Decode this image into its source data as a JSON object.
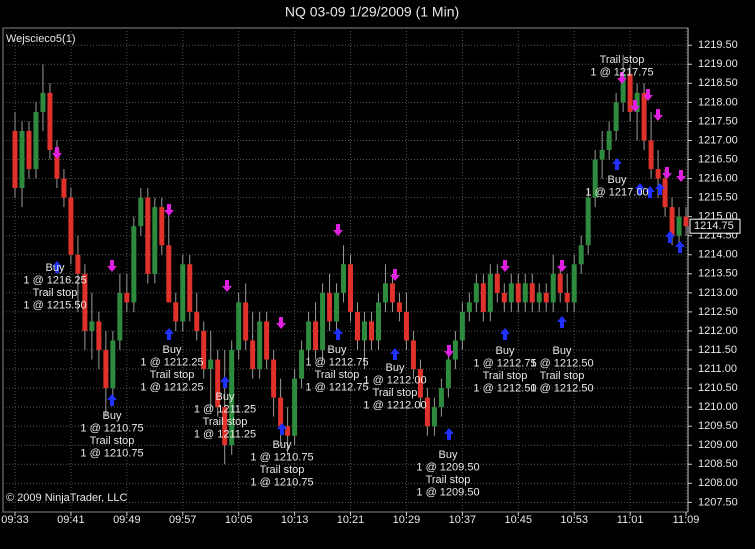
{
  "chart_data": {
    "type": "candlestick",
    "title": "NQ 03-09  1/29/2009 (1 Min)",
    "series_label": "Wejscieco5(1)",
    "copyright": "© 2009 NinjaTrader, LLC",
    "up_color": "#2e8b3e",
    "down_color": "#e0322a",
    "grid": true,
    "categories": [
      "09:33",
      null,
      null,
      null,
      null,
      null,
      null,
      null,
      "09:41",
      null,
      null,
      null,
      null,
      null,
      null,
      null,
      "09:49",
      null,
      null,
      null,
      null,
      null,
      null,
      null,
      "09:57",
      null,
      null,
      null,
      null,
      null,
      null,
      null,
      "10:05",
      null,
      null,
      null,
      null,
      null,
      null,
      null,
      "10:13",
      null,
      null,
      null,
      null,
      null,
      null,
      null,
      "10:21",
      null,
      null,
      null,
      null,
      null,
      null,
      null,
      "10:29",
      null,
      null,
      null,
      null,
      null,
      null,
      null,
      "10:37",
      null,
      null,
      null,
      null,
      null,
      null,
      null,
      "10:45",
      null,
      null,
      null,
      null,
      null,
      null,
      null,
      "10:53",
      null,
      null,
      null,
      null,
      null,
      null,
      null,
      "11:01",
      null,
      null,
      null,
      null,
      null,
      null,
      null,
      "11:09"
    ],
    "open": [
      1217.25,
      1215.75,
      1217.25,
      1216.25,
      1217.75,
      1218.25,
      1216.75,
      1216,
      1215.5,
      1214,
      1213.5,
      1212,
      1212.25,
      1211.5,
      1210.5,
      1211.75,
      1213,
      1212.75,
      1214.75,
      1215.5,
      1213.5,
      1215.25,
      1214.25,
      1212.75,
      1212.25,
      1213.75,
      1212.5,
      1212,
      1211,
      1211.25,
      1210,
      1209,
      1211.5,
      1212.75,
      1211.75,
      1211,
      1212.25,
      1211.25,
      1210.25,
      1209.5,
      1209.25,
      1210.75,
      1211.5,
      1212.25,
      1211.5,
      1213,
      1212.25,
      1213,
      1213.75,
      1212.5,
      1211.75,
      1212.25,
      1211.75,
      1212.75,
      1213.25,
      1212.75,
      1212.5,
      1211.75,
      1211,
      1210.25,
      1209.5,
      1210,
      1210.5,
      1211.25,
      1211.75,
      1212.5,
      1212.75,
      1213.25,
      1212.5,
      1213.5,
      1213,
      1212.75,
      1213.25,
      1212.75,
      1213.25,
      1212.75,
      1213,
      1212.75,
      1213.5,
      1213,
      1212.75,
      1213.75,
      1214.25,
      1215.5,
      1216.5,
      1216.75,
      1217.25,
      1218,
      1218.75,
      1217.75,
      1218.25,
      1217,
      1216.25,
      1216,
      1215.25,
      1214.5,
      1215
    ],
    "high": [
      1217.75,
      1217.5,
      1217.5,
      1218,
      1219,
      1218.5,
      1217,
      1216.25,
      1215.75,
      1214.5,
      1213.75,
      1213,
      1212.5,
      1212,
      1212,
      1213.5,
      1213.5,
      1215,
      1215.75,
      1215.75,
      1215.5,
      1215.5,
      1215.25,
      1213,
      1214,
      1214,
      1213,
      1212.25,
      1212,
      1211.5,
      1211.5,
      1211.75,
      1213,
      1213.25,
      1212.5,
      1212.5,
      1212.5,
      1211.5,
      1210.75,
      1210,
      1211,
      1211.75,
      1212.5,
      1212.75,
      1213.25,
      1213.5,
      1213.25,
      1214.25,
      1214,
      1212.75,
      1212.5,
      1212.5,
      1213,
      1213.75,
      1213.5,
      1213,
      1213,
      1212,
      1211.25,
      1210.5,
      1210.25,
      1210.75,
      1211.5,
      1212,
      1212.75,
      1213,
      1213.5,
      1213.5,
      1213.75,
      1213.75,
      1213.25,
      1213.5,
      1213.5,
      1213.5,
      1213.5,
      1213.25,
      1213.25,
      1214,
      1213.75,
      1213.5,
      1214,
      1214.5,
      1215.75,
      1216.75,
      1217.25,
      1217.5,
      1218.25,
      1219.25,
      1219,
      1218.5,
      1218.5,
      1217.75,
      1216.75,
      1216.25,
      1215.5,
      1215.25,
      1215.25
    ],
    "low": [
      1215.5,
      1215.25,
      1216,
      1216,
      1217.25,
      1216.5,
      1215.75,
      1215.25,
      1213.75,
      1212.5,
      1211.5,
      1211.25,
      1211,
      1209.75,
      1210.25,
      1211.5,
      1212.5,
      1212.5,
      1214.5,
      1213.25,
      1213.25,
      1214,
      1212.75,
      1212,
      1212,
      1212.25,
      1211.75,
      1210.75,
      1210,
      1209.75,
      1208.5,
      1208.75,
      1211.25,
      1211.5,
      1210.75,
      1210.75,
      1211,
      1209.75,
      1209,
      1208.75,
      1209,
      1210.5,
      1211.25,
      1211.25,
      1211.25,
      1212,
      1212,
      1212.75,
      1212.25,
      1211.5,
      1211,
      1211.5,
      1211.5,
      1212.5,
      1212.5,
      1212.25,
      1211.5,
      1210.75,
      1210,
      1209.25,
      1209.25,
      1209.75,
      1210.25,
      1211,
      1211.5,
      1212.25,
      1212.5,
      1212.25,
      1212.25,
      1212.75,
      1212.5,
      1212.5,
      1212.5,
      1212.5,
      1212.5,
      1212.5,
      1212.5,
      1212.5,
      1212.75,
      1212.5,
      1212.5,
      1213.5,
      1214,
      1215.25,
      1216,
      1216.5,
      1217,
      1217.75,
      1217.5,
      1217,
      1216.75,
      1216,
      1215.5,
      1215,
      1214.25,
      1214.25,
      1214.5
    ],
    "close": [
      1215.75,
      1217.25,
      1216.25,
      1217.75,
      1218.25,
      1216.75,
      1216,
      1215.5,
      1214,
      1213.5,
      1212,
      1212.25,
      1211.5,
      1210.5,
      1211.75,
      1213,
      1212.75,
      1214.75,
      1215.5,
      1213.5,
      1215.25,
      1214.25,
      1212.75,
      1212.25,
      1213.75,
      1212.5,
      1212,
      1211,
      1211.25,
      1210,
      1209,
      1211.5,
      1212.75,
      1211.75,
      1211,
      1212.25,
      1211.25,
      1210.25,
      1209.5,
      1209.25,
      1210.75,
      1211.5,
      1212.25,
      1211.5,
      1213,
      1212.25,
      1213,
      1213.75,
      1212.5,
      1211.75,
      1212.25,
      1211.75,
      1212.75,
      1213.25,
      1212.75,
      1212.5,
      1211.75,
      1211,
      1210.25,
      1209.5,
      1210,
      1210.5,
      1211.25,
      1211.75,
      1212.5,
      1212.75,
      1213.25,
      1212.5,
      1213.5,
      1213,
      1212.75,
      1213.25,
      1212.75,
      1213.25,
      1212.75,
      1213,
      1212.75,
      1213.5,
      1213,
      1212.75,
      1213.75,
      1214.25,
      1215.5,
      1216.5,
      1216.75,
      1217.25,
      1218,
      1218.75,
      1217.75,
      1218.25,
      1217,
      1216.25,
      1216,
      1215.25,
      1214.5,
      1215,
      1214.75
    ],
    "ylim": [
      1207.3,
      1219.9
    ],
    "yticks": [
      {
        "value": 1207.5,
        "label": "1207.50"
      },
      {
        "value": 1208,
        "label": "1208.00"
      },
      {
        "value": 1208.5,
        "label": "1208.50"
      },
      {
        "value": 1209,
        "label": "1209.00"
      },
      {
        "value": 1209.5,
        "label": "1209.50"
      },
      {
        "value": 1210,
        "label": "1210.00"
      },
      {
        "value": 1210.5,
        "label": "1210.50"
      },
      {
        "value": 1211,
        "label": "1211.00"
      },
      {
        "value": 1211.5,
        "label": "1211.50"
      },
      {
        "value": 1212,
        "label": "1212.00"
      },
      {
        "value": 1212.5,
        "label": "1212.50"
      },
      {
        "value": 1213,
        "label": "1213.00"
      },
      {
        "value": 1213.5,
        "label": "1213.50"
      },
      {
        "value": 1214,
        "label": "1214.00"
      },
      {
        "value": 1214.5,
        "label": "1214.50"
      },
      {
        "value": 1215,
        "label": "1215.00"
      },
      {
        "value": 1215.5,
        "label": "1215.50"
      },
      {
        "value": 1216,
        "label": "1216.00"
      },
      {
        "value": 1216.5,
        "label": "1216.50"
      },
      {
        "value": 1217,
        "label": "1217.00"
      },
      {
        "value": 1217.5,
        "label": "1217.50"
      },
      {
        "value": 1218,
        "label": "1218.00"
      },
      {
        "value": 1218.5,
        "label": "1218.50"
      },
      {
        "value": 1219,
        "label": "1219.00"
      },
      {
        "value": 1219.5,
        "label": "1219.50"
      }
    ],
    "last_price": 1214.75,
    "annotations": [
      [
        "Buy",
        "1 @ 1216.25",
        "Trail stop",
        "1 @ 1215.50"
      ],
      [
        "Buy",
        "1 @ 1210.75",
        "Trail stop",
        "1 @ 1210.75"
      ],
      [
        "Buy",
        "1 @ 1212.25",
        "Trail stop",
        "1 @ 1212.25"
      ],
      [
        "Buy",
        "1 @ 1211.25",
        "Trail stop",
        "1 @ 1211.25"
      ],
      [
        "Buy",
        "1 @ 1210.75",
        "Trail stop",
        "1 @ 1210.75"
      ],
      [
        "Buy",
        "1 @ 1212.75",
        "Trail stop",
        "1 @ 1212.75"
      ],
      [
        "Buy",
        "1 @ 1212.00",
        "Trail stop",
        "1 @ 1212.00"
      ],
      [
        "Buy",
        "1 @ 1209.50",
        "Trail stop",
        "1 @ 1209.50"
      ],
      [
        "Buy",
        "1 @ 1212.75",
        "Trail stop",
        "1 @ 1212.50"
      ],
      [
        "Buy",
        "1 @ 1212.50",
        "Trail stop",
        "1 @ 1212.50"
      ],
      [
        "Trail stop",
        "1 @ 1217.75"
      ],
      [
        "Buy",
        "1 @ 1217.00"
      ]
    ]
  }
}
